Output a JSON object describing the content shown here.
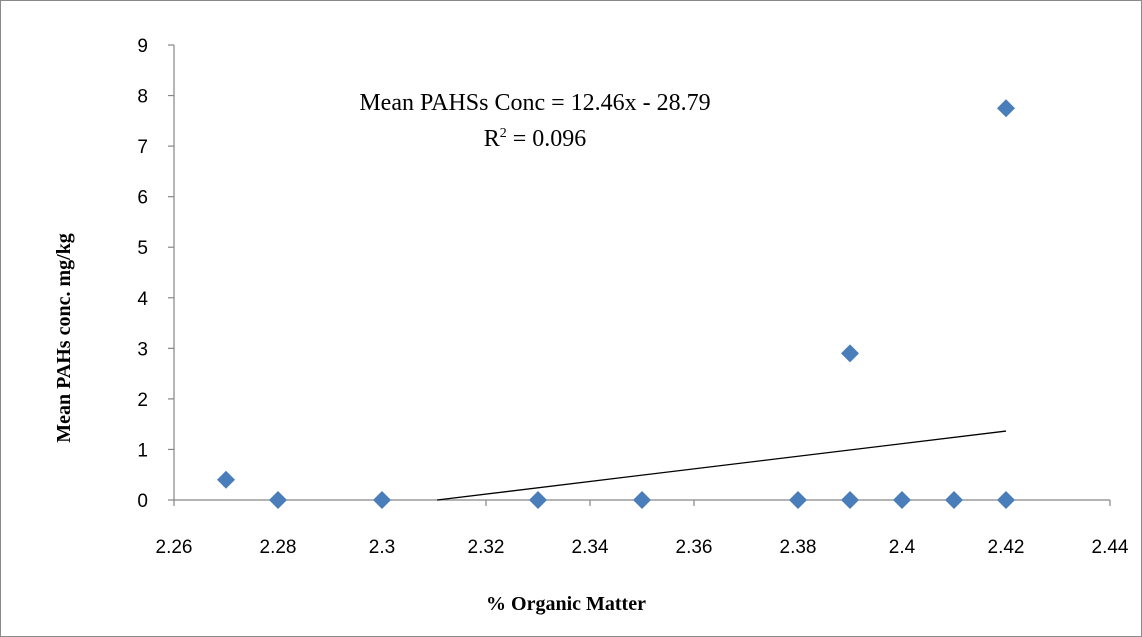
{
  "chart_data": {
    "type": "scatter",
    "title": "",
    "xlabel": "% Organic Matter",
    "ylabel": "Mean PAHs conc. mg/kg",
    "xlim": [
      2.26,
      2.44
    ],
    "ylim": [
      0,
      9
    ],
    "x_ticks": [
      "2.26",
      "2.28",
      "2.3",
      "2.32",
      "2.34",
      "2.36",
      "2.38",
      "2.4",
      "2.42",
      "2.44"
    ],
    "y_ticks": [
      "0",
      "1",
      "2",
      "3",
      "4",
      "5",
      "6",
      "7",
      "8",
      "9"
    ],
    "grid": false,
    "legend": "none",
    "series": [
      {
        "points": [
          {
            "x": 2.27,
            "y": 0.4
          },
          {
            "x": 2.28,
            "y": 0
          },
          {
            "x": 2.3,
            "y": 0
          },
          {
            "x": 2.33,
            "y": 0
          },
          {
            "x": 2.35,
            "y": 0
          },
          {
            "x": 2.38,
            "y": 0
          },
          {
            "x": 2.39,
            "y": 2.9
          },
          {
            "x": 2.39,
            "y": 0
          },
          {
            "x": 2.4,
            "y": 0
          },
          {
            "x": 2.41,
            "y": 0
          },
          {
            "x": 2.42,
            "y": 7.75
          },
          {
            "x": 2.42,
            "y": 0
          }
        ],
        "color": "#4a7ebb",
        "marker": "diamond"
      }
    ],
    "trendline": {
      "slope": 12.46,
      "intercept": -28.79,
      "x_range": [
        2.3106,
        2.42
      ],
      "color": "#000000"
    },
    "annotations": {
      "equation": "Mean PAHSs Conc = 12.46x - 28.79",
      "r2_prefix": "R",
      "r2_sup": "2",
      "r2_rest": " = 0.096"
    }
  }
}
